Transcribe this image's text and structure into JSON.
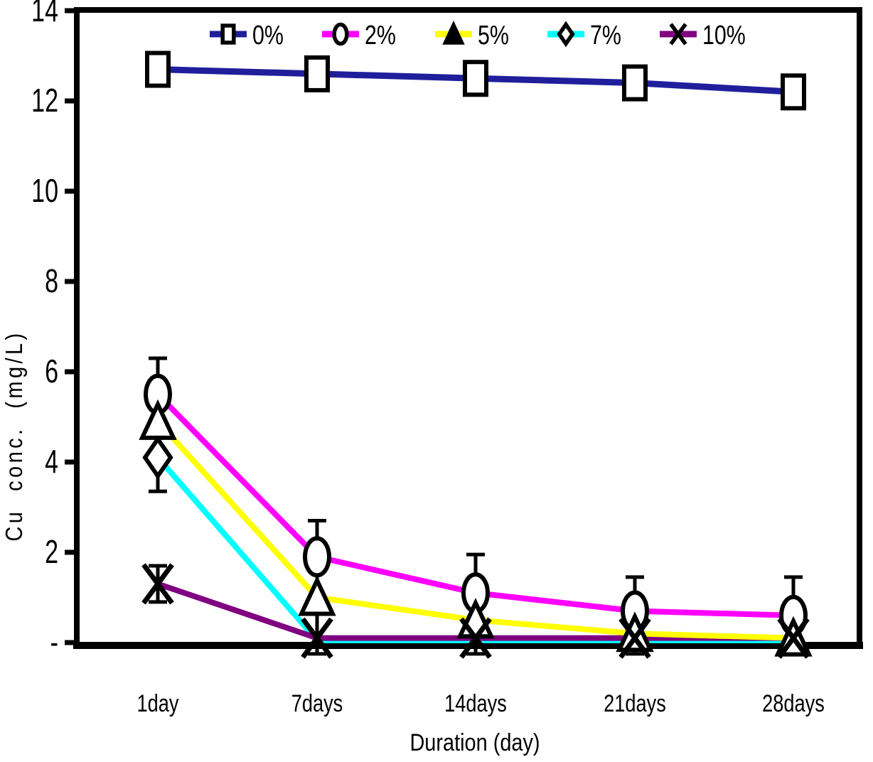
{
  "page": {
    "background": "#ffffff"
  },
  "chart_data": {
    "type": "line",
    "title": "",
    "xlabel": "Duration (day)",
    "ylabel": "Cu conc. (mg/L)",
    "categories": [
      "1day",
      "7days",
      "14days",
      "21days",
      "28days"
    ],
    "ylim": [
      0,
      14
    ],
    "ytick_interval": 2,
    "ytick_labels": [
      "-",
      "2",
      "4",
      "6",
      "8",
      "10",
      "12",
      "14"
    ],
    "zero_tick_shown_as": "-",
    "grid": false,
    "legend_position": "top-inside-horizontal",
    "axis_color": "#000000",
    "marker_stroke": "#000000",
    "marker_fill": "#ffffff",
    "series": [
      {
        "name": "0%",
        "color": "#1f1f9c",
        "marker": "square",
        "values": [
          12.7,
          12.6,
          12.5,
          12.4,
          12.2
        ]
      },
      {
        "name": "2%",
        "color": "#ff00ff",
        "marker": "circle",
        "values": [
          5.5,
          1.9,
          1.1,
          0.7,
          0.6
        ]
      },
      {
        "name": "5%",
        "color": "#ffff00",
        "marker": "triangle",
        "values": [
          4.9,
          1.0,
          0.5,
          0.2,
          0.1
        ]
      },
      {
        "name": "7%",
        "color": "#00ffff",
        "marker": "diamond",
        "values": [
          4.1,
          0.05,
          0.05,
          0.05,
          0.05
        ],
        "marker_only_first_point": true
      },
      {
        "name": "10%",
        "color": "#800080",
        "marker": "x",
        "values": [
          1.3,
          0.1,
          0.1,
          0.1,
          0.1
        ]
      }
    ],
    "error_bars": [
      {
        "category": "1day",
        "top": 6.3,
        "bottom": 3.35
      },
      {
        "category": "1day",
        "top": 1.7,
        "bottom": 0.9
      },
      {
        "category": "7days",
        "top": 2.7,
        "bottom": -0.25
      },
      {
        "category": "14days",
        "top": 1.95,
        "bottom": -0.25
      },
      {
        "category": "21days",
        "top": 1.45,
        "bottom": -0.25
      },
      {
        "category": "28days",
        "top": 1.45,
        "bottom": -0.25
      }
    ]
  }
}
